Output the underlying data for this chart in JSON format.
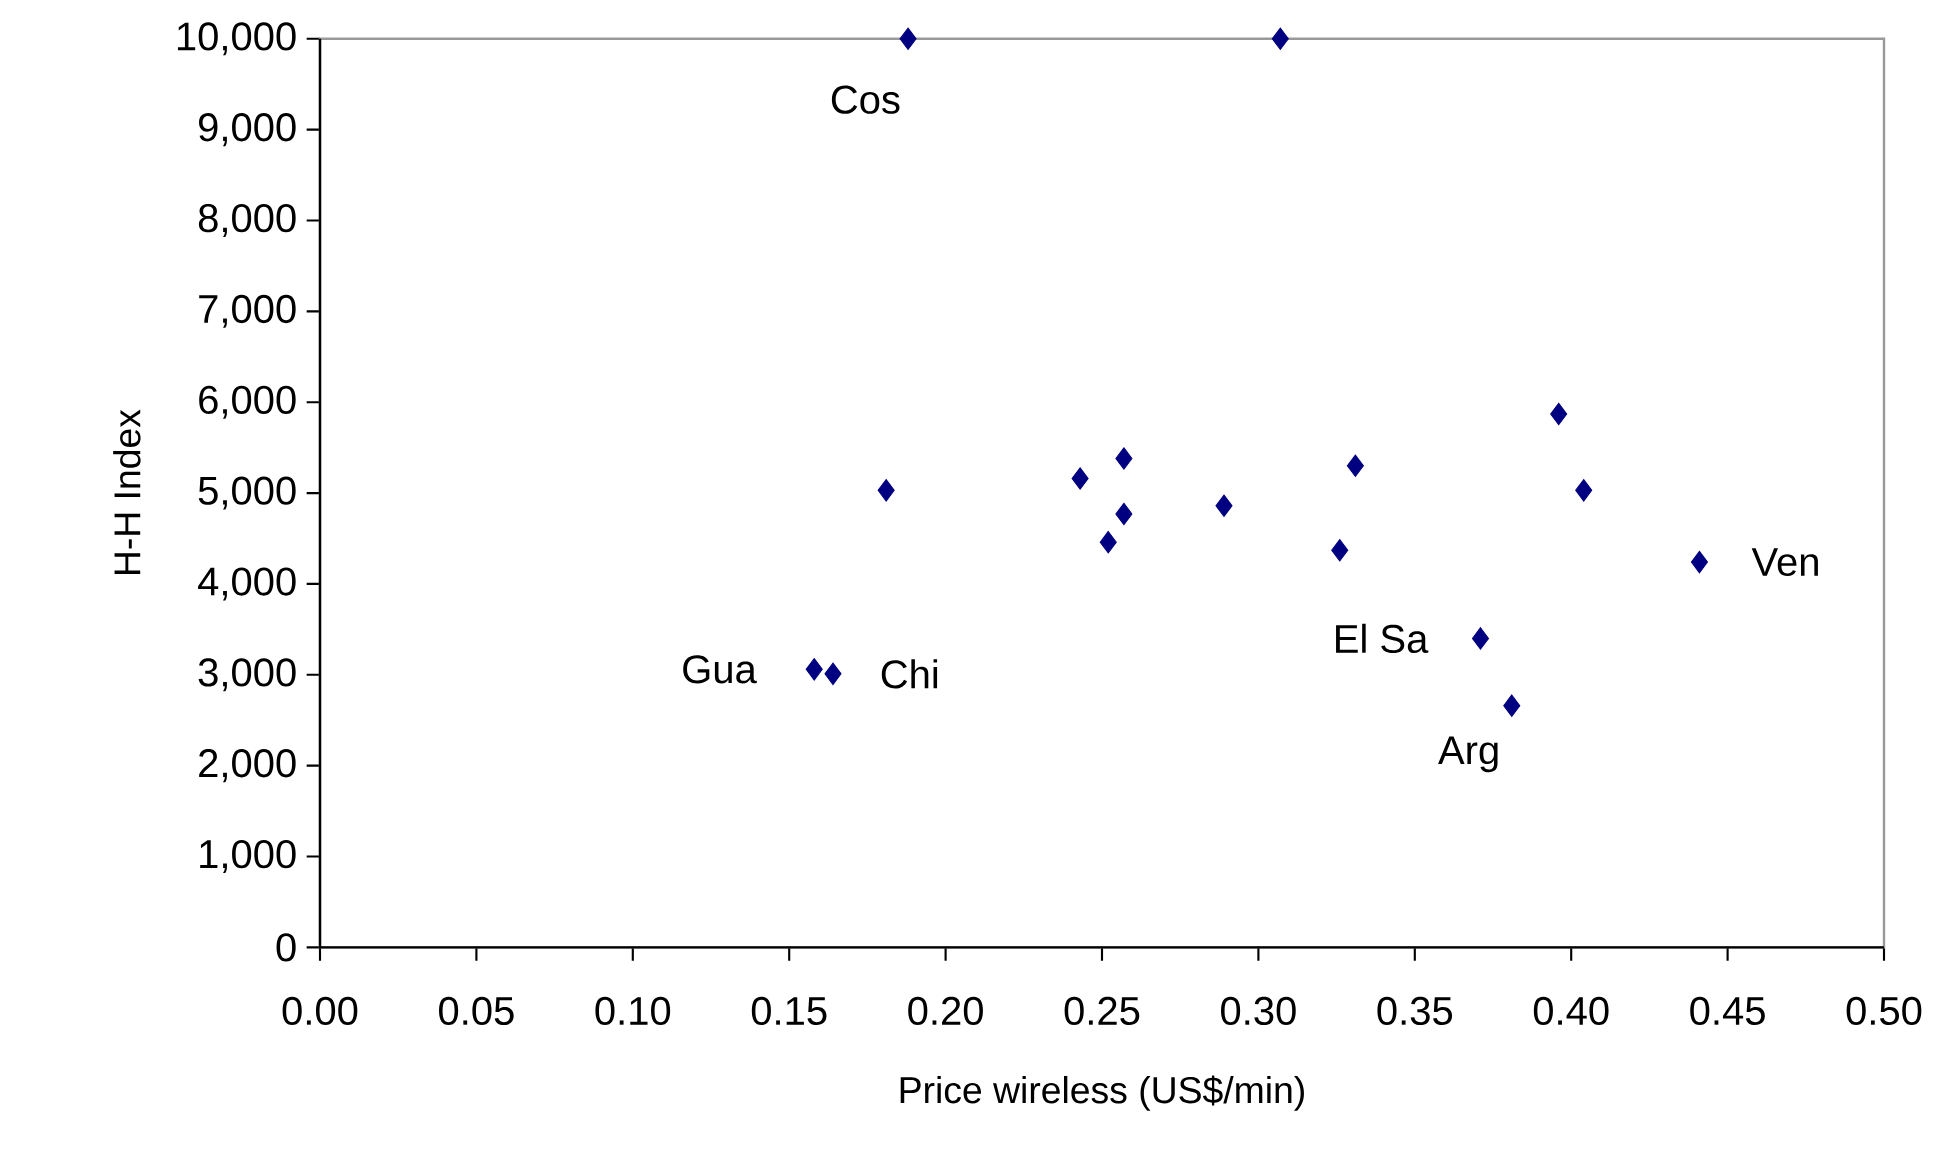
{
  "chart_data": {
    "type": "scatter",
    "xlabel": "Price wireless (US$/min)",
    "ylabel": "H-H Index",
    "x": [
      0.188,
      0.307,
      0.181,
      0.243,
      0.257,
      0.257,
      0.252,
      0.289,
      0.158,
      0.164,
      0.331,
      0.326,
      0.396,
      0.404,
      0.441,
      0.371,
      0.381
    ],
    "values": [
      10000,
      10000,
      5030,
      5160,
      5380,
      4770,
      4460,
      4860,
      3060,
      3010,
      5300,
      4370,
      5870,
      5030,
      4240,
      3400,
      2660
    ],
    "color": "#000080",
    "marker": "diamond",
    "xlim": [
      0,
      0.5
    ],
    "ylim": [
      0,
      10000
    ],
    "xticks": [
      {
        "value": 0,
        "label": "0.00"
      },
      {
        "value": 0.05,
        "label": "0.05"
      },
      {
        "value": 0.1,
        "label": "0.10"
      },
      {
        "value": 0.15,
        "label": "0.15"
      },
      {
        "value": 0.2,
        "label": "0.20"
      },
      {
        "value": 0.25,
        "label": "0.25"
      },
      {
        "value": 0.3,
        "label": "0.30"
      },
      {
        "value": 0.35,
        "label": "0.35"
      },
      {
        "value": 0.4,
        "label": "0.40"
      },
      {
        "value": 0.45,
        "label": "0.45"
      },
      {
        "value": 0.5,
        "label": "0.50"
      }
    ],
    "yticks": [
      0,
      {
        "value": 1000,
        "label": "1,000"
      },
      {
        "value": 2000,
        "label": "2,000"
      },
      {
        "value": 3000,
        "label": "3,000"
      },
      {
        "value": 4000,
        "label": "4,000"
      },
      {
        "value": 5000,
        "label": "5,000"
      },
      {
        "value": 6000,
        "label": "6,000"
      },
      {
        "value": 7000,
        "label": "7,000"
      },
      {
        "value": 8000,
        "label": "8,000"
      },
      {
        "value": 9000,
        "label": "9,000"
      },
      {
        "value": 10000,
        "label": "10,000"
      }
    ],
    "annotations": [
      {
        "text": "Cos",
        "x": 0.188,
        "y": 10000
      },
      {
        "text": "Gua",
        "x": 0.158,
        "y": 3060
      },
      {
        "text": "Chi",
        "x": 0.164,
        "y": 3010
      },
      {
        "text": "El Sa",
        "x": 0.371,
        "y": 3400
      },
      {
        "text": "Arg",
        "x": 0.381,
        "y": 2660
      },
      {
        "text": "Ven",
        "x": 0.441,
        "y": 4240
      }
    ]
  }
}
